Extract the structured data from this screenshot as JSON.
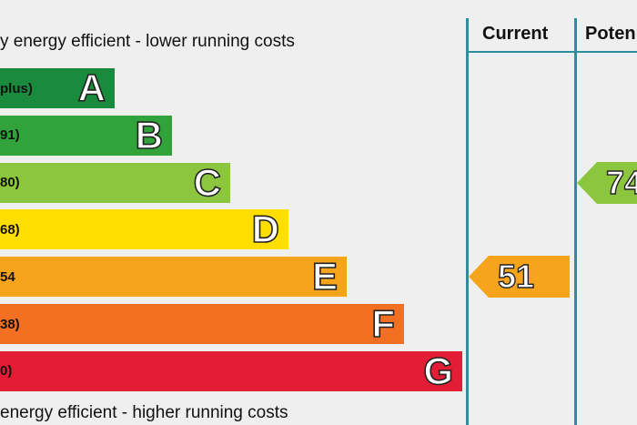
{
  "top_caption": "y energy efficient - lower running costs",
  "bottom_caption": "energy efficient - higher running costs",
  "columns": {
    "current": "Current",
    "potential": "Poten"
  },
  "chart_data": {
    "type": "bar",
    "bands": [
      {
        "letter": "A",
        "range": "plus)",
        "color": "#1a8a3c"
      },
      {
        "letter": "B",
        "range": "91)",
        "color": "#31a33a"
      },
      {
        "letter": "C",
        "range": "80)",
        "color": "#8cc63f"
      },
      {
        "letter": "D",
        "range": "68)",
        "color": "#ffde00"
      },
      {
        "letter": "E",
        "range": "54",
        "color": "#f7a41d"
      },
      {
        "letter": "F",
        "range": "38)",
        "color": "#f36f21"
      },
      {
        "letter": "G",
        "range": "0)",
        "color": "#e31d36"
      }
    ],
    "current": {
      "value": "51",
      "band": "E",
      "color": "#f7a41d"
    },
    "potential": {
      "value": "74",
      "band": "C",
      "color": "#8cc63f"
    }
  }
}
